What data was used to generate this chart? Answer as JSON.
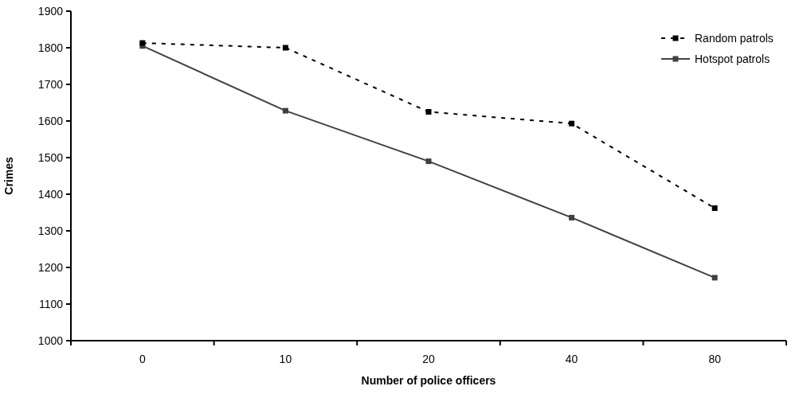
{
  "chart_data": {
    "type": "line",
    "xlabel": "Number of police officers",
    "ylabel": "Crimes",
    "categories": [
      "0",
      "10",
      "20",
      "40",
      "80"
    ],
    "ylim": [
      1000,
      1900
    ],
    "yticks": [
      1000,
      1100,
      1200,
      1300,
      1400,
      1500,
      1600,
      1700,
      1800,
      1900
    ],
    "grid": false,
    "legend": "top right",
    "marker": "square",
    "series": [
      {
        "name": "Random patrols",
        "color": "#000000",
        "line_style": "dotted",
        "values": [
          1813,
          1800,
          1625,
          1593,
          1362
        ]
      },
      {
        "name": "Hotspot patrols",
        "color": "#404040",
        "line_style": "solid",
        "values": [
          1805,
          1628,
          1490,
          1336,
          1172
        ]
      }
    ]
  }
}
